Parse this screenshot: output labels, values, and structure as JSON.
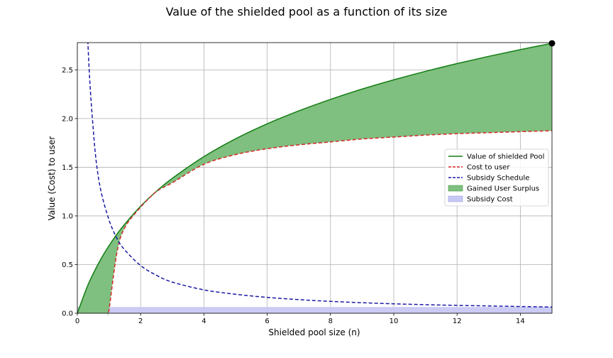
{
  "chart_data": {
    "type": "line",
    "title": "Value of the shielded pool as a function of its size",
    "xlabel": "Shielded pool size (n)",
    "ylabel": "Value (Cost) to user",
    "xlim": [
      0,
      15
    ],
    "ylim": [
      0,
      2.78
    ],
    "x_ticks": [
      "0",
      "2",
      "4",
      "6",
      "8",
      "10",
      "12",
      "14"
    ],
    "y_ticks": [
      "0.0",
      "0.5",
      "1.0",
      "1.5",
      "2.0",
      "2.5"
    ],
    "grid": true,
    "legend_position": "center-right",
    "x": [
      0,
      0.3,
      0.5,
      0.75,
      1,
      1.25,
      1.5,
      2,
      2.5,
      3,
      4,
      5,
      6,
      7,
      8,
      9,
      10,
      11,
      12,
      13,
      14,
      15
    ],
    "series": [
      {
        "name": "Value of shielded Pool",
        "style": "solid",
        "color": "#137d13",
        "values": [
          0,
          0.262,
          0.405,
          0.56,
          0.693,
          0.811,
          0.916,
          1.099,
          1.253,
          1.386,
          1.609,
          1.792,
          1.946,
          2.079,
          2.197,
          2.303,
          2.398,
          2.485,
          2.565,
          2.639,
          2.708,
          2.773
        ]
      },
      {
        "name": "Cost to user",
        "style": "dashed",
        "color": "#d62728",
        "x": [
          0.95,
          1,
          1.25,
          1.5,
          2,
          2.5,
          3,
          4,
          5,
          6,
          7,
          8,
          9,
          10,
          11,
          12,
          13,
          14,
          15
        ],
        "values": [
          0,
          0.03,
          0.62,
          0.88,
          1.09,
          1.25,
          1.34,
          1.53,
          1.63,
          1.69,
          1.73,
          1.76,
          1.79,
          1.81,
          1.83,
          1.845,
          1.855,
          1.865,
          1.875
        ]
      },
      {
        "name": "Subsidy Schedule",
        "style": "dashed",
        "color": "#1a1aa6",
        "x": [
          0.33,
          0.4,
          0.5,
          0.6,
          0.75,
          1,
          1.25,
          1.5,
          2,
          2.5,
          3,
          4,
          5,
          6,
          7,
          8,
          9,
          10,
          11,
          12,
          13,
          14,
          15
        ],
        "values": [
          2.8,
          2.35,
          1.9,
          1.55,
          1.25,
          0.96,
          0.77,
          0.65,
          0.49,
          0.39,
          0.32,
          0.24,
          0.195,
          0.163,
          0.14,
          0.122,
          0.108,
          0.097,
          0.088,
          0.081,
          0.075,
          0.069,
          0.064
        ]
      }
    ],
    "fills": [
      {
        "name": "Gained User Surplus",
        "color": "#7fbf7f",
        "between": [
          "Value of shielded Pool",
          "Cost to user"
        ]
      },
      {
        "name": "Subsidy Cost",
        "color": "#c8c8f4",
        "from_x": 0,
        "to_x": 15,
        "level": 0.064
      }
    ],
    "endpoint_marker": {
      "x": 15,
      "y": 2.773
    },
    "legend": [
      {
        "label": "Value of shielded Pool",
        "kind": "line",
        "dash": false,
        "color": "#137d13"
      },
      {
        "label": "Cost to user",
        "kind": "line",
        "dash": true,
        "color": "#d62728"
      },
      {
        "label": "Subsidy Schedule",
        "kind": "line",
        "dash": true,
        "color": "#1a1aa6"
      },
      {
        "label": "Gained User Surplus",
        "kind": "patch",
        "color": "#7fbf7f",
        "edge": "#4a9e4a"
      },
      {
        "label": "Subsidy Cost",
        "kind": "patch",
        "color": "#c8c8f4",
        "edge": "#a0a0e0"
      }
    ]
  }
}
